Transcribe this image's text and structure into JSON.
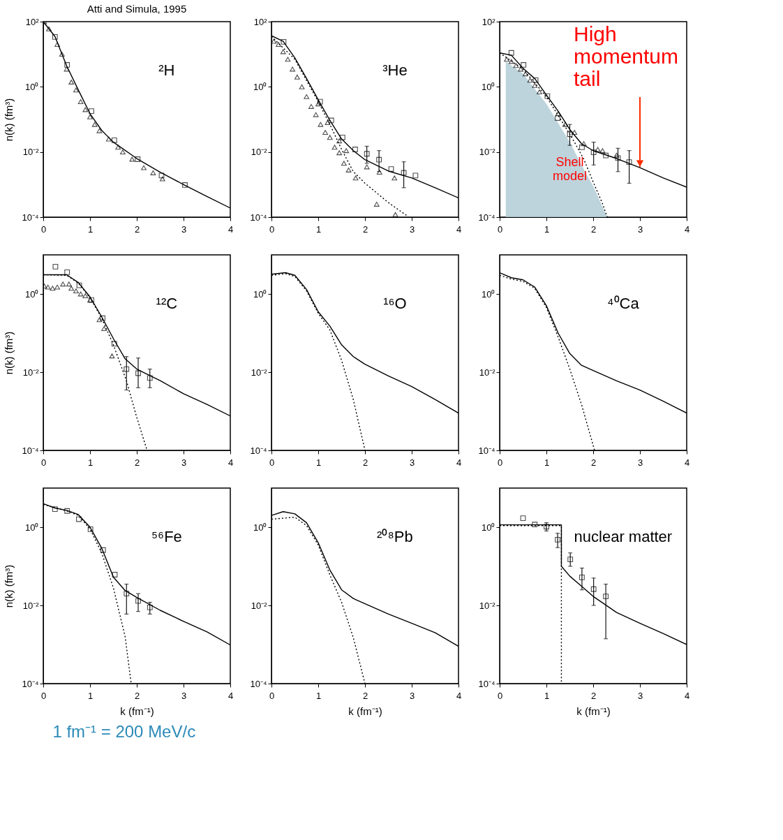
{
  "chart_data": [
    {
      "type": "line",
      "title": "Atti and Simula, 1995",
      "ylabel": "n(k) (fm³)",
      "log": "y",
      "xlim": [
        0,
        4
      ],
      "xticks": [
        0,
        1,
        2,
        3,
        4
      ],
      "ylim": [
        0.0001,
        100
      ],
      "yticks": [
        {
          "value": 0.0001,
          "label": "10⁻⁴"
        },
        {
          "value": 0.01,
          "label": "10⁻²"
        },
        {
          "value": 1,
          "label": "10⁰"
        },
        {
          "value": 100,
          "label": "10²"
        }
      ],
      "annotations": [
        "²H"
      ],
      "series": [
        {
          "type": "line",
          "color": "#000000",
          "line_style": "solid",
          "x": [
            0,
            0.25,
            0.5,
            0.75,
            1.0,
            1.25,
            1.5,
            2.0,
            2.5,
            3.0,
            3.5,
            4.0
          ],
          "values": [
            100,
            35,
            4.4,
            0.8,
            0.15,
            0.046,
            0.02,
            0.0063,
            0.0024,
            0.001,
            0.00043,
            0.00019
          ]
        },
        {
          "type": "scatter",
          "marker": "square",
          "color": "#000000",
          "x": [
            0.25,
            0.51,
            1.03,
            1.52,
            2.02,
            2.53,
            3.03
          ],
          "values": [
            34,
            4.7,
            0.18,
            0.023,
            0.006,
            0.0019,
            0.00097
          ]
        },
        {
          "type": "scatter",
          "marker": "triangle",
          "color": "#000000",
          "x": [
            0.02,
            0.12,
            0.3,
            0.4,
            0.5,
            0.6,
            0.7,
            0.8,
            0.9,
            1.0,
            1.1,
            1.2,
            1.4,
            1.6,
            1.7,
            1.9,
            2.15,
            2.35,
            2.55
          ],
          "values": [
            100,
            60,
            20,
            10,
            3.5,
            1.4,
            0.8,
            0.35,
            0.2,
            0.12,
            0.07,
            0.045,
            0.025,
            0.014,
            0.01,
            0.006,
            0.0033,
            0.0023,
            0.0015
          ]
        }
      ]
    },
    {
      "type": "line",
      "log": "y",
      "xlim": [
        0,
        4
      ],
      "xticks": [
        0,
        1,
        2,
        3,
        4
      ],
      "ylim": [
        0.0001,
        100
      ],
      "yticks": [
        {
          "value": 0.0001,
          "label": "10⁻⁴"
        },
        {
          "value": 0.01,
          "label": "10⁻²"
        },
        {
          "value": 1,
          "label": "10⁰"
        },
        {
          "value": 100,
          "label": "10²"
        }
      ],
      "annotations": [
        "³He"
      ],
      "series": [
        {
          "type": "line",
          "color": "#000000",
          "line_style": "solid",
          "x": [
            0,
            0.25,
            0.5,
            0.75,
            1.0,
            1.25,
            1.5,
            1.75,
            2.0,
            2.5,
            3.0,
            3.5,
            4.0
          ],
          "values": [
            37,
            25,
            7.7,
            1.8,
            0.4,
            0.093,
            0.025,
            0.011,
            0.0058,
            0.0026,
            0.0016,
            0.0008,
            0.00039
          ]
        },
        {
          "type": "line",
          "color": "#000000",
          "line_style": "dotted",
          "x": [
            0,
            0.5,
            1.0,
            1.25,
            1.5,
            1.75,
            2.0,
            2.5,
            2.9
          ],
          "values": [
            35,
            7,
            0.35,
            0.07,
            0.012,
            0.0025,
            0.0011,
            0.00028,
            0.00011
          ]
        },
        {
          "type": "scatter",
          "marker": "square",
          "color": "#000000",
          "x": [
            0.26,
            1.04,
            1.28,
            1.52,
            1.79,
            2.04,
            2.3,
            2.56,
            2.83,
            3.08
          ],
          "values": [
            24,
            0.35,
            0.093,
            0.028,
            0.012,
            0.0088,
            0.0058,
            0.003,
            0.0023,
            0.0019
          ],
          "errors": [
            null,
            null,
            null,
            null,
            null,
            [
              0.0045,
              0.015
            ],
            [
              0.0025,
              0.011
            ],
            null,
            [
              0.0008,
              0.005
            ],
            null
          ]
        },
        {
          "type": "scatter",
          "marker": "triangle",
          "color": "#000000",
          "x": [
            0.05,
            0.15,
            0.25,
            0.35,
            0.45,
            0.55,
            0.65,
            0.75,
            0.85,
            0.95,
            1.05,
            1.15,
            1.25,
            1.35,
            1.45,
            1.55,
            1.65,
            1.8,
            2.25,
            2.65
          ],
          "values": [
            25,
            20,
            12,
            7,
            3.5,
            2,
            1,
            0.5,
            0.25,
            0.14,
            0.07,
            0.04,
            0.028,
            0.014,
            0.0095,
            0.0045,
            0.0028,
            0.0016,
            0.00025,
            0.00012
          ]
        },
        {
          "type": "scatter",
          "marker": "triangle",
          "color": "#000000",
          "x": [
            1.0,
            1.2,
            1.45,
            1.6,
            2.04,
            2.31,
            2.63
          ],
          "values": [
            0.3,
            0.08,
            0.022,
            0.011,
            0.0035,
            0.0024,
            0.0016
          ]
        }
      ]
    },
    {
      "type": "line",
      "log": "y",
      "xlim": [
        0,
        4
      ],
      "xticks": [
        0,
        1,
        2,
        3,
        4
      ],
      "ylim": [
        0.0001,
        100
      ],
      "yticks": [
        {
          "value": 0.0001,
          "label": "10⁻⁴"
        },
        {
          "value": 0.01,
          "label": "10⁻²"
        },
        {
          "value": 1,
          "label": "10⁰"
        },
        {
          "value": 100,
          "label": "10²"
        }
      ],
      "annotations": [
        {
          "text": "High momentum tail",
          "x": 3,
          "y": 0.0035
        }
      ],
      "series": [
        {
          "type": "area",
          "name": "Shell model",
          "color": "#b3ccd6",
          "x": [
            0.13,
            0.5,
            1.0,
            1.5,
            1.75,
            2.0,
            2.3
          ],
          "values": [
            6,
            2.5,
            0.3,
            0.02,
            0.004,
            0.0009,
            0.0001
          ]
        },
        {
          "type": "line",
          "color": "#000000",
          "line_style": "solid",
          "x": [
            0,
            0.25,
            0.5,
            0.75,
            1.0,
            1.25,
            1.5,
            1.75,
            2.0,
            2.5,
            3.0,
            3.5,
            4.0
          ],
          "values": [
            11,
            9.3,
            3.7,
            1.8,
            0.56,
            0.18,
            0.049,
            0.018,
            0.011,
            0.0063,
            0.0033,
            0.0016,
            0.00083
          ]
        },
        {
          "type": "line",
          "color": "#000000",
          "line_style": "dotted",
          "x": [
            0,
            0.5,
            1.0,
            1.5,
            1.6,
            1.8,
            2.0,
            2.2,
            2.3
          ],
          "values": [
            11,
            3.5,
            0.5,
            0.035,
            0.02,
            0.006,
            0.0012,
            0.00026,
            0.0001
          ]
        },
        {
          "type": "scatter",
          "marker": "square",
          "color": "#000000",
          "x": [
            0.25,
            0.51,
            0.77,
            1.02,
            1.24,
            1.5,
            1.76,
            2.01,
            2.27,
            2.53,
            2.77
          ],
          "values": [
            11,
            4.7,
            1.6,
            0.52,
            0.11,
            0.035,
            0.014,
            0.0098,
            0.0078,
            0.0065,
            0.0049
          ],
          "errors": [
            null,
            null,
            null,
            null,
            null,
            [
              0.016,
              0.07
            ],
            null,
            [
              0.004,
              0.02
            ],
            null,
            [
              0.0025,
              0.013
            ],
            [
              0.0011,
              0.011
            ]
          ]
        },
        {
          "type": "scatter",
          "marker": "triangle",
          "color": "#000000",
          "x": [
            0.15,
            0.25,
            0.35,
            0.45,
            0.55,
            0.65,
            0.75,
            0.85
          ],
          "values": [
            7,
            6,
            4.5,
            3.5,
            2.5,
            1.6,
            1.1,
            0.7
          ]
        },
        {
          "type": "scatter",
          "marker": "triangle",
          "color": "#000000",
          "x": [
            1.25,
            1.4,
            1.6,
            1.8,
            2.1,
            2.2,
            2.5
          ],
          "values": [
            0.15,
            0.07,
            0.04,
            0.018,
            0.012,
            0.011,
            0.008
          ]
        }
      ]
    },
    {
      "type": "line",
      "ylabel": "n(k) (fm³)",
      "log": "y",
      "xlim": [
        0,
        4
      ],
      "xticks": [
        0,
        1,
        2,
        3,
        4
      ],
      "ylim": [
        0.0001,
        10
      ],
      "yticks": [
        {
          "value": 0.0001,
          "label": "10⁻⁴"
        },
        {
          "value": 0.01,
          "label": "10⁻²"
        },
        {
          "value": 1,
          "label": "10⁰"
        }
      ],
      "annotations": [
        "¹²C"
      ],
      "series": [
        {
          "type": "line",
          "color": "#000000",
          "line_style": "solid",
          "x": [
            0,
            0.5,
            0.75,
            1.0,
            1.25,
            1.5,
            1.75,
            2.0,
            2.5,
            3.0,
            3.5,
            4.0
          ],
          "values": [
            3.1,
            3.1,
            1.96,
            0.84,
            0.26,
            0.072,
            0.022,
            0.012,
            0.0061,
            0.0028,
            0.0015,
            0.00076
          ]
        },
        {
          "type": "line",
          "color": "#000000",
          "line_style": "dotted",
          "x": [
            0,
            0.5,
            0.75,
            1.0,
            1.25,
            1.5,
            1.78,
            1.99,
            2.22
          ],
          "values": [
            3.1,
            3.0,
            1.9,
            0.8,
            0.24,
            0.05,
            0.006,
            0.00076,
            0.0001
          ]
        },
        {
          "type": "scatter",
          "marker": "square",
          "color": "#000000",
          "x": [
            0.26,
            0.51,
            0.77,
            1.03,
            1.27,
            1.52,
            1.78,
            2.03,
            2.28
          ],
          "values": [
            5.0,
            3.6,
            1.66,
            0.7,
            0.24,
            0.053,
            0.012,
            0.0094,
            0.0071
          ],
          "errors": [
            null,
            null,
            null,
            null,
            null,
            null,
            [
              0.0035,
              0.025
            ],
            [
              0.004,
              0.023
            ],
            [
              0.004,
              0.012
            ]
          ]
        },
        {
          "type": "scatter",
          "marker": "triangle",
          "color": "#000000",
          "x": [
            0.02,
            0.1,
            0.2,
            0.3,
            0.42,
            0.55,
            0.6,
            0.7,
            0.8,
            0.9,
            1.0,
            1.2,
            1.3,
            1.47
          ],
          "values": [
            1.6,
            1.5,
            1.4,
            1.5,
            1.8,
            1.8,
            1.4,
            1.2,
            1.0,
            0.9,
            0.7,
            0.22,
            0.13,
            0.026
          ]
        }
      ]
    },
    {
      "type": "line",
      "log": "y",
      "xlim": [
        0,
        4
      ],
      "xticks": [
        0,
        1,
        2,
        3,
        4
      ],
      "ylim": [
        0.0001,
        10
      ],
      "yticks": [
        {
          "value": 0.0001,
          "label": "10⁻⁴"
        },
        {
          "value": 0.01,
          "label": "10⁻²"
        },
        {
          "value": 1,
          "label": "10⁰"
        }
      ],
      "annotations": [
        "¹⁶O"
      ],
      "series": [
        {
          "type": "line",
          "color": "#000000",
          "line_style": "solid",
          "x": [
            0,
            0.3,
            0.5,
            0.75,
            1.0,
            1.25,
            1.5,
            1.75,
            2.0,
            2.5,
            3.0,
            3.5,
            4.0
          ],
          "values": [
            3.2,
            3.5,
            3.0,
            1.3,
            0.35,
            0.15,
            0.05,
            0.025,
            0.016,
            0.008,
            0.0043,
            0.002,
            0.0009
          ]
        },
        {
          "type": "line",
          "color": "#000000",
          "line_style": "dotted",
          "x": [
            0,
            0.3,
            0.5,
            0.75,
            1.0,
            1.25,
            1.5,
            1.75,
            2.0
          ],
          "values": [
            3.0,
            3.3,
            2.8,
            1.2,
            0.32,
            0.12,
            0.02,
            0.002,
            0.0001
          ]
        }
      ]
    },
    {
      "type": "line",
      "log": "y",
      "xlim": [
        0,
        4
      ],
      "xticks": [
        0,
        1,
        2,
        3,
        4
      ],
      "ylim": [
        0.0001,
        10
      ],
      "yticks": [
        {
          "value": 0.0001,
          "label": "10⁻⁴"
        },
        {
          "value": 0.01,
          "label": "10⁻²"
        },
        {
          "value": 1,
          "label": "10⁰"
        }
      ],
      "annotations": [
        "⁴⁰Ca"
      ],
      "series": [
        {
          "type": "line",
          "color": "#000000",
          "line_style": "solid",
          "x": [
            0,
            0.25,
            0.5,
            0.75,
            1.0,
            1.25,
            1.5,
            1.75,
            2.0,
            2.5,
            3.0,
            3.5,
            4.0
          ],
          "values": [
            3.5,
            2.6,
            2.3,
            1.5,
            0.5,
            0.1,
            0.03,
            0.015,
            0.011,
            0.006,
            0.0035,
            0.0018,
            0.0009
          ]
        },
        {
          "type": "line",
          "color": "#000000",
          "line_style": "dotted",
          "x": [
            0,
            0.25,
            0.5,
            0.75,
            1.0,
            1.25,
            1.5,
            1.75,
            2.03
          ],
          "values": [
            3.0,
            2.4,
            2.1,
            1.4,
            0.45,
            0.08,
            0.012,
            0.0015,
            0.0001
          ]
        }
      ]
    },
    {
      "type": "line",
      "xlabel": "k (fm⁻¹)",
      "ylabel": "n(k) (fm³)",
      "log": "y",
      "xlim": [
        0,
        4
      ],
      "xticks": [
        0,
        1,
        2,
        3,
        4
      ],
      "ylim": [
        0.0001,
        10
      ],
      "yticks": [
        {
          "value": 0.0001,
          "label": "10⁻⁴"
        },
        {
          "value": 0.01,
          "label": "10⁻²"
        },
        {
          "value": 1,
          "label": "10⁰"
        }
      ],
      "annotations": [
        "⁵⁶Fe",
        "1 fm⁻¹ = 200 MeV/c"
      ],
      "series": [
        {
          "type": "line",
          "color": "#000000",
          "line_style": "solid",
          "x": [
            0,
            0.25,
            0.5,
            0.75,
            1.0,
            1.25,
            1.5,
            1.75,
            2.0,
            2.5,
            3.0,
            3.5,
            4.0
          ],
          "values": [
            4.0,
            3.1,
            2.7,
            2.1,
            1.0,
            0.29,
            0.053,
            0.024,
            0.016,
            0.0075,
            0.0039,
            0.0021,
            0.00097
          ]
        },
        {
          "type": "line",
          "color": "#000000",
          "line_style": "dotted",
          "x": [
            0,
            0.5,
            0.75,
            1.0,
            1.25,
            1.5,
            1.75,
            1.88
          ],
          "values": [
            3.8,
            2.6,
            2.0,
            0.9,
            0.22,
            0.028,
            0.0016,
            0.0001
          ]
        },
        {
          "type": "scatter",
          "marker": "square",
          "color": "#000000",
          "x": [
            0.25,
            0.51,
            0.76,
            1.01,
            1.28,
            1.53,
            1.78,
            2.03,
            2.28
          ],
          "values": [
            2.9,
            2.6,
            1.6,
            0.89,
            0.26,
            0.061,
            0.02,
            0.013,
            0.0089
          ],
          "errors": [
            null,
            null,
            null,
            null,
            null,
            null,
            [
              0.006,
              0.035
            ],
            [
              0.007,
              0.02
            ],
            [
              0.006,
              0.012
            ]
          ]
        }
      ]
    },
    {
      "type": "line",
      "xlabel": "k (fm⁻¹)",
      "log": "y",
      "xlim": [
        0,
        4
      ],
      "xticks": [
        0,
        1,
        2,
        3,
        4
      ],
      "ylim": [
        0.0001,
        10
      ],
      "yticks": [
        {
          "value": 0.0001,
          "label": "10⁻⁴"
        },
        {
          "value": 0.01,
          "label": "10⁻²"
        },
        {
          "value": 1,
          "label": "10⁰"
        }
      ],
      "annotations": [
        "²⁰⁸Pb"
      ],
      "series": [
        {
          "type": "line",
          "color": "#000000",
          "line_style": "solid",
          "x": [
            0,
            0.25,
            0.5,
            0.75,
            1.0,
            1.25,
            1.5,
            1.75,
            2.0,
            2.5,
            3.0,
            3.5,
            4.0
          ],
          "values": [
            2.0,
            2.5,
            2.2,
            1.3,
            0.4,
            0.08,
            0.025,
            0.015,
            0.011,
            0.006,
            0.0035,
            0.002,
            0.0009
          ]
        },
        {
          "type": "line",
          "color": "#000000",
          "line_style": "dotted",
          "x": [
            0,
            0.25,
            0.5,
            0.75,
            1.0,
            1.25,
            1.5,
            1.75,
            2.0
          ],
          "values": [
            1.6,
            1.7,
            1.8,
            1.1,
            0.35,
            0.06,
            0.012,
            0.0015,
            0.0001
          ]
        }
      ]
    },
    {
      "type": "line",
      "xlabel": "k (fm⁻¹)",
      "log": "y",
      "xlim": [
        0,
        4
      ],
      "xticks": [
        0,
        1,
        2,
        3,
        4
      ],
      "ylim": [
        0.0001,
        10
      ],
      "yticks": [
        {
          "value": 0.0001,
          "label": "10⁻⁴"
        },
        {
          "value": 0.01,
          "label": "10⁻²"
        },
        {
          "value": 1,
          "label": "10⁰"
        }
      ],
      "annotations": [
        "nuclear matter"
      ],
      "series": [
        {
          "type": "line",
          "color": "#000000",
          "line_style": "solid",
          "x": [
            0,
            1.32,
            1.32,
            1.5,
            1.75,
            2.0,
            2.5,
            3.0,
            3.5,
            4.0
          ],
          "values": [
            1.15,
            1.15,
            0.1,
            0.056,
            0.031,
            0.017,
            0.0066,
            0.0035,
            0.0019,
            0.001
          ]
        },
        {
          "type": "line",
          "color": "#000000",
          "line_style": "dotted",
          "x": [
            0,
            1.32,
            1.32
          ],
          "values": [
            1.1,
            1.1,
            0.0001
          ]
        },
        {
          "type": "scatter",
          "marker": "square",
          "color": "#000000",
          "x": [
            0.5,
            0.75,
            1.0,
            1.24,
            1.51,
            1.76,
            2.01,
            2.27
          ],
          "values": [
            1.7,
            1.17,
            1.03,
            0.48,
            0.15,
            0.052,
            0.026,
            0.017
          ],
          "errors": [
            null,
            null,
            [
              0.8,
              1.3
            ],
            [
              0.3,
              0.7
            ],
            [
              0.1,
              0.22
            ],
            [
              0.025,
              0.09
            ],
            [
              0.01,
              0.05
            ],
            [
              0.0014,
              0.035
            ]
          ]
        }
      ]
    }
  ]
}
